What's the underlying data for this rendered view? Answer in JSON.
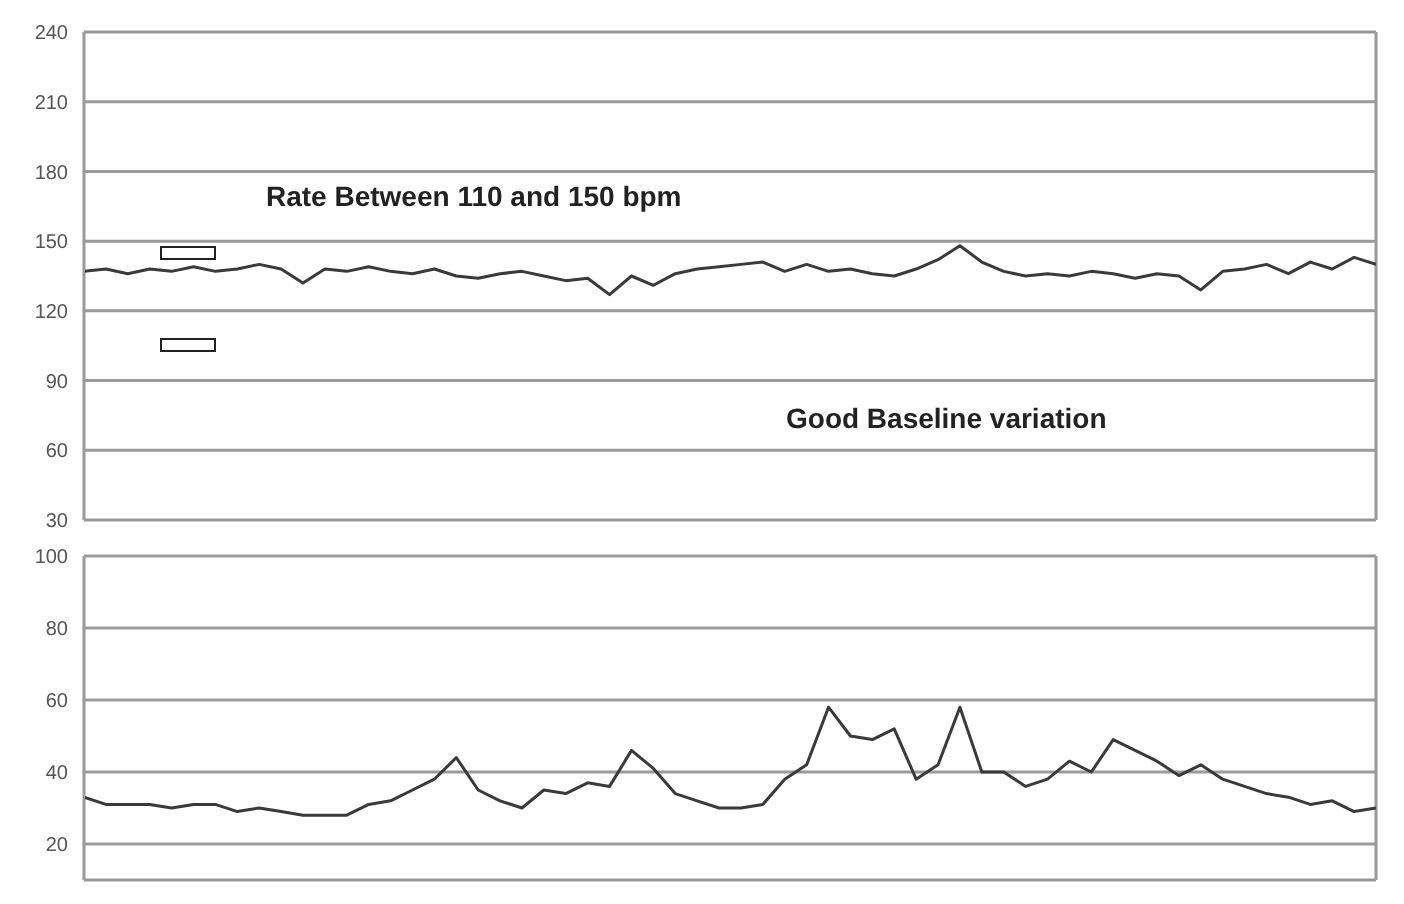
{
  "chart_data": [
    {
      "type": "line",
      "categories": [
        null,
        null,
        null,
        null,
        null,
        null,
        null,
        null,
        null,
        null,
        null,
        null,
        null,
        null,
        null,
        null,
        null,
        null,
        null,
        null,
        null,
        null,
        null,
        null,
        null,
        null,
        null,
        null,
        null,
        null,
        null,
        null,
        null,
        null,
        null,
        null,
        null,
        null,
        null,
        null,
        null,
        null,
        null,
        null,
        null,
        null,
        null,
        null,
        null,
        null,
        null,
        null,
        null,
        null,
        null,
        null,
        null,
        null,
        null,
        null
      ],
      "series": [
        {
          "color": "#3a3a3a",
          "values": [
            137,
            138,
            136,
            138,
            137,
            139,
            137,
            138,
            140,
            138,
            132,
            138,
            137,
            139,
            137,
            136,
            138,
            135,
            134,
            136,
            137,
            135,
            133,
            134,
            127,
            135,
            131,
            136,
            138,
            139,
            140,
            141,
            137,
            140,
            137,
            138,
            136,
            135,
            138,
            142,
            148,
            141,
            137,
            135,
            136,
            135,
            137,
            136,
            134,
            136,
            135,
            129,
            137,
            138,
            140,
            136,
            141,
            138,
            143,
            140
          ]
        }
      ],
      "ylim": [
        30,
        240
      ],
      "yticks": [
        30,
        60,
        90,
        120,
        150,
        180,
        210,
        240
      ],
      "grid": true,
      "marker": "none",
      "line_style": "solid",
      "annotations": [
        "Rate Between 110 and 150 bpm",
        "Good Baseline variation"
      ]
    },
    {
      "type": "line",
      "categories": [
        null,
        null,
        null,
        null,
        null,
        null,
        null,
        null,
        null,
        null,
        null,
        null,
        null,
        null,
        null,
        null,
        null,
        null,
        null,
        null,
        null,
        null,
        null,
        null,
        null,
        null,
        null,
        null,
        null,
        null,
        null,
        null,
        null,
        null,
        null,
        null,
        null,
        null,
        null,
        null,
        null,
        null,
        null,
        null,
        null,
        null,
        null,
        null,
        null,
        null,
        null,
        null,
        null,
        null,
        null,
        null,
        null,
        null,
        null,
        null
      ],
      "series": [
        {
          "color": "#3a3a3a",
          "values": [
            33,
            31,
            31,
            31,
            30,
            31,
            31,
            29,
            30,
            29,
            28,
            28,
            28,
            31,
            32,
            35,
            38,
            44,
            35,
            32,
            30,
            35,
            34,
            37,
            36,
            46,
            41,
            34,
            32,
            30,
            30,
            31,
            38,
            42,
            58,
            50,
            49,
            52,
            38,
            42,
            58,
            40,
            40,
            36,
            38,
            43,
            40,
            49,
            46,
            43,
            39,
            42,
            38,
            36,
            34,
            33,
            31,
            32,
            29,
            30
          ]
        }
      ],
      "ylim": [
        10,
        100
      ],
      "yticks": [
        20,
        40,
        60,
        80,
        100
      ],
      "grid": true,
      "marker": "none",
      "line_style": "solid"
    }
  ]
}
